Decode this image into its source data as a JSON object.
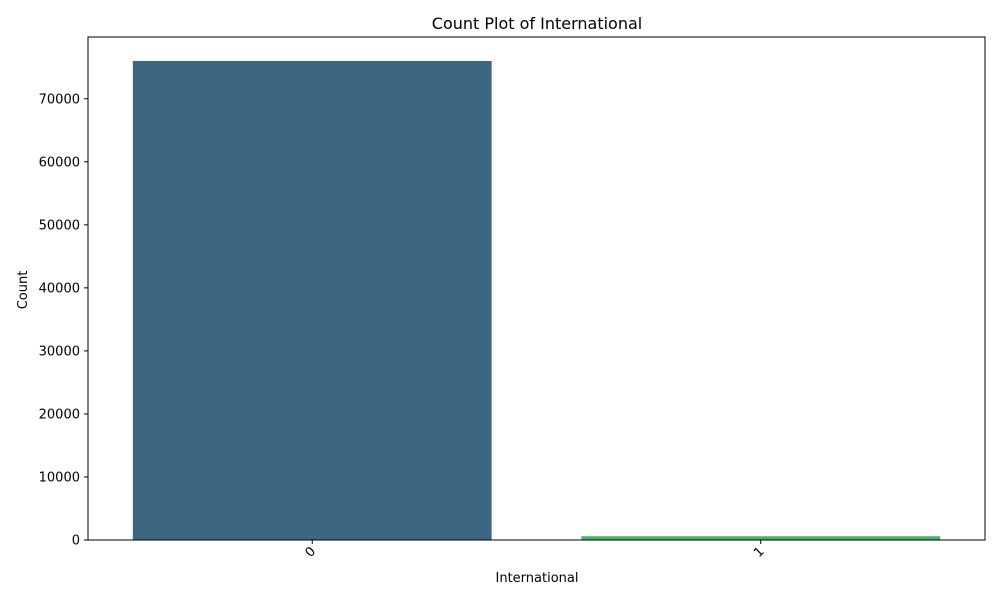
{
  "chart_data": {
    "type": "bar",
    "title": "Count Plot of International",
    "xlabel": "International",
    "ylabel": "Count",
    "categories": [
      "0",
      "1"
    ],
    "values": [
      76000,
      600
    ],
    "ylim": [
      0,
      79800
    ],
    "yticks": [
      0,
      10000,
      20000,
      30000,
      40000,
      50000,
      60000,
      70000
    ],
    "colors": [
      "#3e6680",
      "#42b56d"
    ],
    "grid": false,
    "legend": "none",
    "xtick_rotation": "45 degrees"
  }
}
